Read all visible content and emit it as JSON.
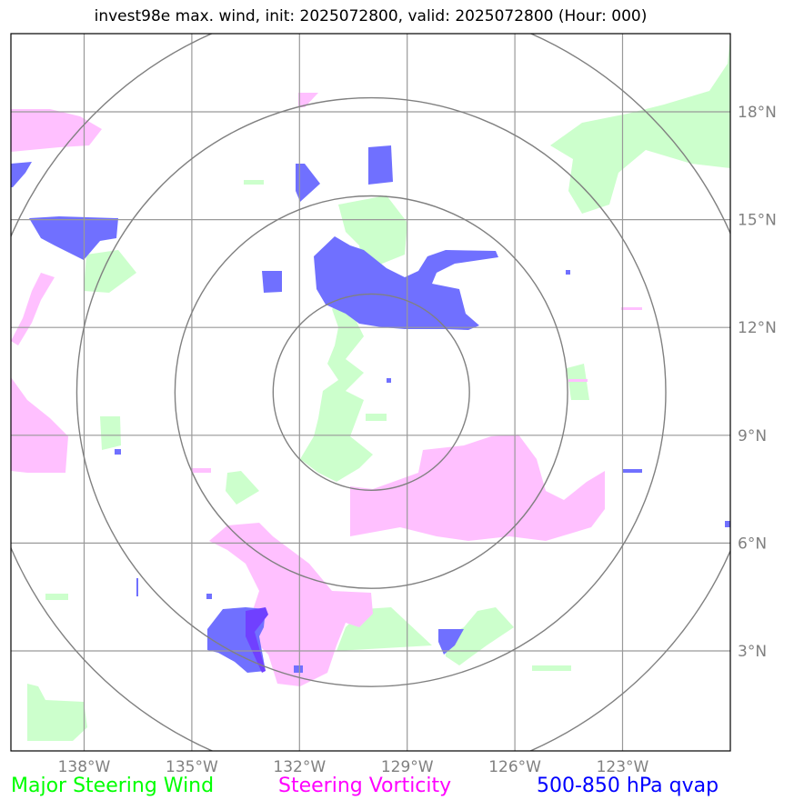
{
  "title": "invest98e max. wind, init: 2025072800, valid: 2025072800 (Hour: 000)",
  "map": {
    "lat_ticks": [
      {
        "value": 18,
        "label": "18°N"
      },
      {
        "value": 15,
        "label": "15°N"
      },
      {
        "value": 12,
        "label": "12°N"
      },
      {
        "value": 9,
        "label": "9°N"
      },
      {
        "value": 6,
        "label": "6°N"
      },
      {
        "value": 3,
        "label": "3°N"
      }
    ],
    "lon_ticks": [
      {
        "value": -138,
        "label": "138°W"
      },
      {
        "value": -135,
        "label": "135°W"
      },
      {
        "value": -132,
        "label": "132°W"
      },
      {
        "value": -129,
        "label": "129°W"
      },
      {
        "value": -126,
        "label": "126°W"
      },
      {
        "value": -123,
        "label": "123°W"
      }
    ],
    "center": {
      "lon": -130.0,
      "lat": 10.2
    },
    "range_rings_deg": [
      2.73,
      5.46,
      8.19,
      10.92
    ],
    "colors": {
      "grid": "#999999",
      "ring": "#808080",
      "wind": "#ccffcc",
      "vorticity": "#ffc0ff",
      "qvap": "#7070ff",
      "qvap_dark": "#7040ff"
    }
  },
  "legend": {
    "wind": {
      "label": "Major Steering Wind",
      "color": "#00ff00"
    },
    "vorticity": {
      "label": "Steering Vorticity",
      "color": "#ff00ff"
    },
    "qvap": {
      "label": "500-850 hPa qvap",
      "color": "#0000ff"
    }
  }
}
